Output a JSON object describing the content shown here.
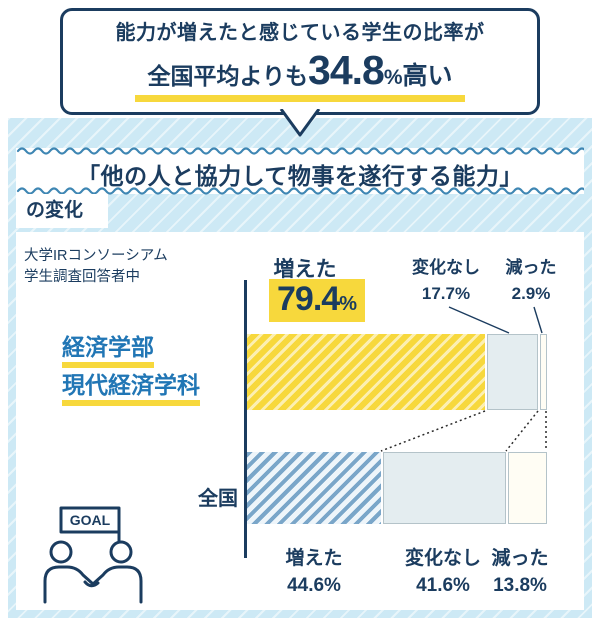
{
  "colors": {
    "navy": "#1b3c5f",
    "yellow": "#f7d83c",
    "panel_blue": "#cde9f5",
    "wave_blue": "#3e86b3",
    "series1_label_blue": "#2176b5",
    "light_segment": "#e4edf0",
    "stripe_blue": "#7aa6c9"
  },
  "callout": {
    "line1": "能力が増えたと感じている学生の比率が",
    "prefix": "全国平均よりも",
    "big_number": "34.8",
    "percent": "%",
    "suffix": "高い"
  },
  "header": {
    "title": "「他の人と協力して物事を遂行する能力」",
    "subtitle": "の変化"
  },
  "note": {
    "line1": "大学IRコンソーシアム",
    "line2": "学生調査回答者中"
  },
  "series1_labels": {
    "name_line1": "経済学部",
    "name_line2": "現代経済学科",
    "increased_label": "増えた",
    "increased_value": "79.4",
    "increased_unit": "%",
    "nochange_label": "変化なし",
    "nochange_value": "17.7%",
    "decreased_label": "減った",
    "decreased_value": "2.9%"
  },
  "series2_labels": {
    "name": "全国",
    "increased_label": "増えた",
    "increased_value": "44.6%",
    "nochange_label": "変化なし",
    "nochange_value": "41.6%",
    "decreased_label": "減った",
    "decreased_value": "13.8%"
  },
  "goal_icon_text": "GOAL",
  "chart_data": {
    "type": "bar",
    "orientation": "horizontal",
    "stacked": true,
    "unit": "%",
    "xlim": [
      0,
      100
    ],
    "categories": [
      "増えた",
      "変化なし",
      "減った"
    ],
    "series": [
      {
        "name": "経済学部 現代経済学科",
        "values": [
          79.4,
          17.7,
          2.9
        ]
      },
      {
        "name": "全国",
        "values": [
          44.6,
          41.6,
          13.8
        ]
      }
    ],
    "annotation": "能力が増えたと感じている学生の比率が全国平均よりも34.8%高い",
    "note": "大学IRコンソーシアム学生調査回答者中",
    "title": "「他の人と協力して物事を遂行する能力」の変化"
  }
}
